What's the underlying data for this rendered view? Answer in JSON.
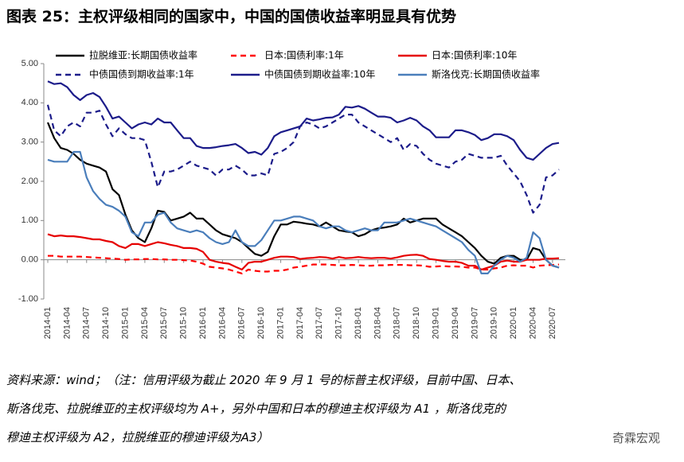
{
  "chart_data": {
    "type": "line",
    "title": "图表 25：主权评级相同的国家中，中国的国债收益率明显具有优势",
    "notes": [
      "资料来源：wind；（注：信用评级为截止 2020 年 9 月 1 号的标普主权评级，目前中国、日本、",
      "斯洛伐克、拉脱维亚的主权评级均为 A+，另外中国和日本的穆迪主权评级为 A1 ，斯洛伐克的",
      "穆迪主权评级为 A2，拉脱维亚的穆迪评级为A3）"
    ],
    "watermark": "奇霖宏观",
    "categories": [
      "2014-01",
      null,
      null,
      "2014-04",
      null,
      null,
      "2014-07",
      null,
      null,
      "2014-10",
      null,
      null,
      "2015-01",
      null,
      null,
      "2015-04",
      null,
      null,
      "2015-07",
      null,
      null,
      "2015-10",
      null,
      null,
      "2016-01",
      null,
      null,
      "2016-04",
      null,
      null,
      "2016-07",
      null,
      null,
      "2016-10",
      null,
      null,
      "2017-01",
      null,
      null,
      "2017-04",
      null,
      null,
      "2017-07",
      null,
      null,
      "2017-10",
      null,
      null,
      "2018-01",
      null,
      null,
      "2018-04",
      null,
      null,
      "2018-07",
      null,
      null,
      "2018-10",
      null,
      null,
      "2019-01",
      null,
      null,
      "2019-04",
      null,
      null,
      "2019-07",
      null,
      null,
      "2019-10",
      null,
      null,
      "2020-01",
      null,
      null,
      "2020-04",
      null,
      null,
      "2020-07",
      null
    ],
    "ylim": [
      -1,
      5
    ],
    "yticks": [
      {
        "value": -1,
        "label": "-1.00"
      },
      {
        "value": 0,
        "label": "0.00"
      },
      {
        "value": 1,
        "label": "1.00"
      },
      {
        "value": 2,
        "label": "2.00"
      },
      {
        "value": 3,
        "label": "3.00"
      },
      {
        "value": 4,
        "label": "4.00"
      },
      {
        "value": 5,
        "label": "5.00"
      }
    ],
    "grid": false,
    "series": [
      {
        "name": "拉脱维亚:长期国债收益率",
        "color": "#000000",
        "dash": false,
        "values": [
          3.5,
          3.1,
          2.85,
          2.8,
          2.7,
          2.55,
          2.45,
          2.4,
          2.35,
          2.25,
          1.8,
          1.65,
          1.15,
          0.75,
          0.55,
          0.45,
          0.8,
          1.25,
          1.22,
          1.0,
          1.05,
          1.1,
          1.2,
          1.05,
          1.05,
          0.9,
          0.75,
          0.65,
          0.6,
          0.55,
          0.45,
          0.3,
          0.15,
          0.1,
          0.2,
          0.6,
          0.9,
          0.9,
          0.97,
          0.95,
          0.92,
          0.9,
          0.85,
          0.95,
          0.85,
          0.75,
          0.72,
          0.7,
          0.6,
          0.65,
          0.75,
          0.8,
          0.82,
          0.85,
          0.9,
          1.05,
          0.95,
          1.0,
          1.05,
          1.05,
          1.05,
          0.9,
          0.8,
          0.7,
          0.6,
          0.45,
          0.3,
          0.1,
          -0.05,
          -0.1,
          0.05,
          0.1,
          0.1,
          0.0,
          0.0,
          0.3,
          0.25,
          0.0,
          -0.15,
          -0.2
        ]
      },
      {
        "name": "日本:国债利率:1年",
        "color": "#ff0000",
        "dash": true,
        "values": [
          0.1,
          0.1,
          0.08,
          0.08,
          0.08,
          0.08,
          0.07,
          0.06,
          0.05,
          0.04,
          0.03,
          0.02,
          0.0,
          0.01,
          0.01,
          0.02,
          0.02,
          0.01,
          0.01,
          0.0,
          0.0,
          -0.01,
          -0.02,
          -0.05,
          -0.1,
          -0.18,
          -0.2,
          -0.22,
          -0.25,
          -0.3,
          -0.35,
          -0.25,
          -0.28,
          -0.3,
          -0.3,
          -0.28,
          -0.28,
          -0.25,
          -0.2,
          -0.18,
          -0.15,
          -0.12,
          -0.12,
          -0.12,
          -0.13,
          -0.14,
          -0.14,
          -0.13,
          -0.14,
          -0.15,
          -0.15,
          -0.14,
          -0.14,
          -0.13,
          -0.13,
          -0.13,
          -0.14,
          -0.14,
          -0.15,
          -0.18,
          -0.17,
          -0.16,
          -0.17,
          -0.17,
          -0.18,
          -0.2,
          -0.2,
          -0.25,
          -0.25,
          -0.22,
          -0.2,
          -0.15,
          -0.14,
          -0.15,
          -0.15,
          -0.2,
          -0.15,
          -0.14,
          -0.13,
          -0.12
        ]
      },
      {
        "name": "日本:国债利率:10年",
        "color": "#e60000",
        "dash": false,
        "values": [
          0.65,
          0.6,
          0.62,
          0.6,
          0.6,
          0.58,
          0.55,
          0.52,
          0.52,
          0.48,
          0.45,
          0.35,
          0.3,
          0.4,
          0.4,
          0.35,
          0.4,
          0.45,
          0.42,
          0.38,
          0.35,
          0.3,
          0.3,
          0.28,
          0.2,
          0.0,
          -0.05,
          -0.08,
          -0.1,
          -0.18,
          -0.25,
          -0.08,
          -0.05,
          -0.05,
          0.0,
          0.05,
          0.08,
          0.08,
          0.07,
          0.02,
          0.04,
          0.05,
          0.07,
          0.06,
          0.03,
          0.07,
          0.04,
          0.05,
          0.07,
          0.05,
          0.04,
          0.05,
          0.05,
          0.03,
          0.06,
          0.1,
          0.12,
          0.13,
          0.1,
          0.02,
          0.0,
          -0.03,
          -0.05,
          -0.05,
          -0.08,
          -0.15,
          -0.15,
          -0.25,
          -0.2,
          -0.15,
          -0.05,
          -0.02,
          -0.05,
          -0.05,
          0.0,
          0.0,
          0.0,
          0.03,
          0.03,
          0.04
        ]
      },
      {
        "name": "中债国债到期收益率:1年",
        "color": "#1c1c8a",
        "dash": true,
        "values": [
          3.95,
          3.3,
          3.15,
          3.4,
          3.5,
          3.4,
          3.75,
          3.75,
          3.8,
          3.45,
          3.15,
          3.35,
          3.2,
          3.1,
          3.1,
          3.05,
          2.5,
          1.85,
          2.25,
          2.25,
          2.3,
          2.4,
          2.5,
          2.4,
          2.35,
          2.3,
          2.15,
          2.3,
          2.3,
          2.4,
          2.3,
          2.15,
          2.15,
          2.2,
          2.15,
          2.7,
          2.75,
          2.85,
          3.0,
          3.4,
          3.5,
          3.45,
          3.35,
          3.4,
          3.5,
          3.6,
          3.7,
          3.7,
          3.5,
          3.4,
          3.3,
          3.2,
          3.1,
          3.0,
          3.1,
          2.8,
          2.95,
          2.9,
          2.7,
          2.55,
          2.45,
          2.4,
          2.35,
          2.5,
          2.55,
          2.7,
          2.65,
          2.6,
          2.6,
          2.6,
          2.65,
          2.4,
          2.2,
          2.0,
          1.65,
          1.2,
          1.4,
          2.1,
          2.15,
          2.3
        ]
      },
      {
        "name": "中债国债到期收益率:10年",
        "color": "#1c1c8a",
        "dash": false,
        "values": [
          4.55,
          4.48,
          4.5,
          4.4,
          4.2,
          4.07,
          4.2,
          4.25,
          4.15,
          3.9,
          3.6,
          3.65,
          3.5,
          3.35,
          3.45,
          3.5,
          3.45,
          3.6,
          3.5,
          3.5,
          3.3,
          3.1,
          3.1,
          2.9,
          2.85,
          2.85,
          2.87,
          2.9,
          2.92,
          2.95,
          2.85,
          2.72,
          2.75,
          2.68,
          2.85,
          3.15,
          3.25,
          3.3,
          3.35,
          3.4,
          3.6,
          3.55,
          3.58,
          3.62,
          3.63,
          3.7,
          3.9,
          3.88,
          3.92,
          3.85,
          3.75,
          3.65,
          3.65,
          3.62,
          3.5,
          3.55,
          3.62,
          3.55,
          3.4,
          3.3,
          3.12,
          3.12,
          3.12,
          3.3,
          3.3,
          3.25,
          3.18,
          3.05,
          3.1,
          3.2,
          3.2,
          3.15,
          3.05,
          2.8,
          2.6,
          2.55,
          2.7,
          2.85,
          2.95,
          2.98
        ]
      },
      {
        "name": "斯洛伐克:长期国债收益率",
        "color": "#4a7ebb",
        "dash": false,
        "values": [
          2.55,
          2.5,
          2.5,
          2.5,
          2.75,
          2.75,
          2.1,
          1.75,
          1.55,
          1.4,
          1.35,
          1.25,
          1.1,
          0.7,
          0.6,
          0.95,
          0.95,
          1.15,
          1.2,
          0.95,
          0.8,
          0.75,
          0.7,
          0.75,
          0.7,
          0.55,
          0.45,
          0.4,
          0.45,
          0.75,
          0.45,
          0.35,
          0.35,
          0.5,
          0.75,
          1.0,
          1.0,
          1.05,
          1.1,
          1.1,
          1.05,
          1.0,
          0.85,
          0.8,
          0.85,
          0.85,
          0.75,
          0.7,
          0.75,
          0.8,
          0.75,
          0.75,
          0.95,
          0.95,
          0.95,
          1.0,
          1.05,
          1.0,
          0.95,
          0.9,
          0.85,
          0.75,
          0.65,
          0.55,
          0.45,
          0.25,
          0.1,
          -0.35,
          -0.35,
          -0.15,
          0.0,
          0.1,
          0.05,
          -0.05,
          0.05,
          0.7,
          0.55,
          0.0,
          -0.15,
          -0.2
        ]
      }
    ]
  }
}
